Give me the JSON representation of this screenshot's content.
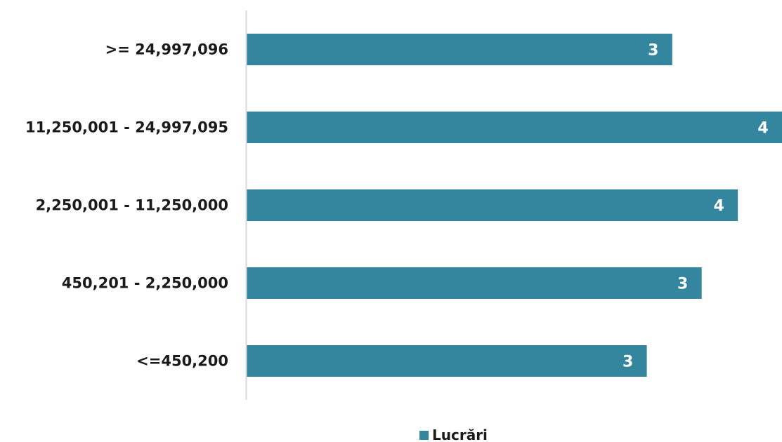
{
  "chart_data": {
    "type": "bar",
    "orientation": "horizontal",
    "categories": [
      ">= 24,997,096",
      "11,250,001 - 24,997,095",
      "2,250,001 - 11,250,000",
      "450,201 - 2,250,000",
      "<=450,200"
    ],
    "series": [
      {
        "name": "Lucrări",
        "values": [
          3.18,
          4.0,
          3.67,
          3.4,
          2.99
        ],
        "data_labels": [
          "3",
          "4",
          "4",
          "3",
          "3"
        ]
      }
    ],
    "title": "",
    "xlabel": "",
    "ylabel": "",
    "xlim": [
      0,
      4.0
    ],
    "grid": false,
    "legend_position": "bottom",
    "colors": {
      "bar": "#33869d",
      "axis": "#d9d9d9",
      "label": "#1a1a1a",
      "data_label": "#ffffff"
    }
  }
}
